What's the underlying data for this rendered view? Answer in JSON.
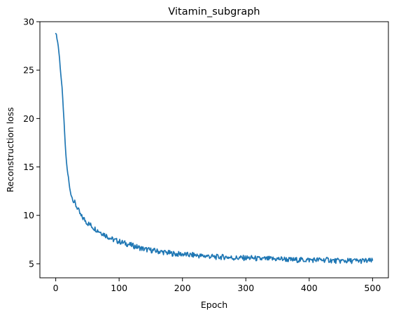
{
  "chart_data": {
    "type": "line",
    "title": "Vitamin_subgraph",
    "xlabel": "Epoch",
    "ylabel": "Reconstruction loss",
    "xlim": [
      -25,
      525
    ],
    "ylim": [
      3.55,
      30.0
    ],
    "xticks": [
      0,
      100,
      200,
      300,
      400,
      500
    ],
    "yticks": [
      5,
      10,
      15,
      20,
      25,
      30
    ],
    "grid": false,
    "legend": "none",
    "line_color": "#1f77b4",
    "series": [
      {
        "x": [
          0,
          2,
          4,
          6,
          8,
          10,
          12,
          14,
          16,
          18,
          20,
          22,
          24,
          26,
          28,
          30,
          32,
          34,
          36,
          38,
          40,
          45,
          50,
          55,
          60,
          65,
          70,
          75,
          80,
          85,
          90,
          95,
          100,
          110,
          120,
          130,
          140,
          150,
          160,
          170,
          180,
          190,
          200,
          210,
          220,
          230,
          240,
          250,
          260,
          270,
          280,
          290,
          300,
          310,
          320,
          330,
          340,
          350,
          360,
          370,
          380,
          390,
          400,
          410,
          420,
          430,
          440,
          450,
          460,
          470,
          480,
          490,
          500
        ],
        "y": [
          28.9,
          28.3,
          27.5,
          26.2,
          24.6,
          23.1,
          21.0,
          18.5,
          16.2,
          14.8,
          13.9,
          12.8,
          12.2,
          11.8,
          11.4,
          11.3,
          11.0,
          10.8,
          10.5,
          10.2,
          9.9,
          9.6,
          9.2,
          9.0,
          8.7,
          8.5,
          8.3,
          8.1,
          7.9,
          7.7,
          7.5,
          7.4,
          7.3,
          7.1,
          6.9,
          6.7,
          6.5,
          6.4,
          6.3,
          6.2,
          6.1,
          6.0,
          6.0,
          5.9,
          5.9,
          5.8,
          5.8,
          5.7,
          5.7,
          5.7,
          5.6,
          5.6,
          5.6,
          5.6,
          5.5,
          5.5,
          5.5,
          5.5,
          5.5,
          5.4,
          5.4,
          5.4,
          5.4,
          5.4,
          5.4,
          5.4,
          5.3,
          5.3,
          5.3,
          5.3,
          5.3,
          5.3,
          5.3
        ]
      }
    ]
  }
}
